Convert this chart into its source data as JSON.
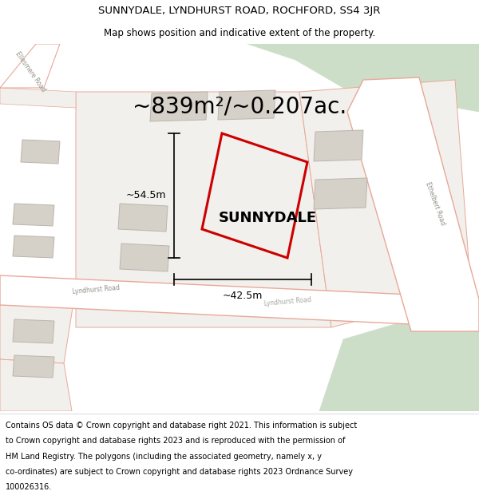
{
  "title_line1": "SUNNYDALE, LYNDHURST ROAD, ROCHFORD, SS4 3JR",
  "title_line2": "Map shows position and indicative extent of the property.",
  "area_label": "~839m²/~0.207ac.",
  "property_label": "SUNNYDALE",
  "dim_height": "~54.5m",
  "dim_width": "~42.5m",
  "footer_lines": [
    "Contains OS data © Crown copyright and database right 2021. This information is subject",
    "to Crown copyright and database rights 2023 and is reproduced with the permission of",
    "HM Land Registry. The polygons (including the associated geometry, namely x, y",
    "co-ordinates) are subject to Crown copyright and database rights 2023 Ordnance Survey",
    "100026316."
  ],
  "map_bg": "#f2f0ec",
  "road_fill": "#ffffff",
  "road_stroke": "#e8a898",
  "green_fill": "#cddec8",
  "building_fill": "#d5d0c8",
  "building_stroke": "#bbb5ac",
  "plot_stroke": "#e8a898",
  "property_color": "#cc0000",
  "title_fontsize": 9.5,
  "subtitle_fontsize": 8.5,
  "area_fontsize": 20,
  "label_fontsize": 13,
  "dim_fontsize": 9,
  "road_label_fontsize": 5.5,
  "footer_fontsize": 7.0
}
